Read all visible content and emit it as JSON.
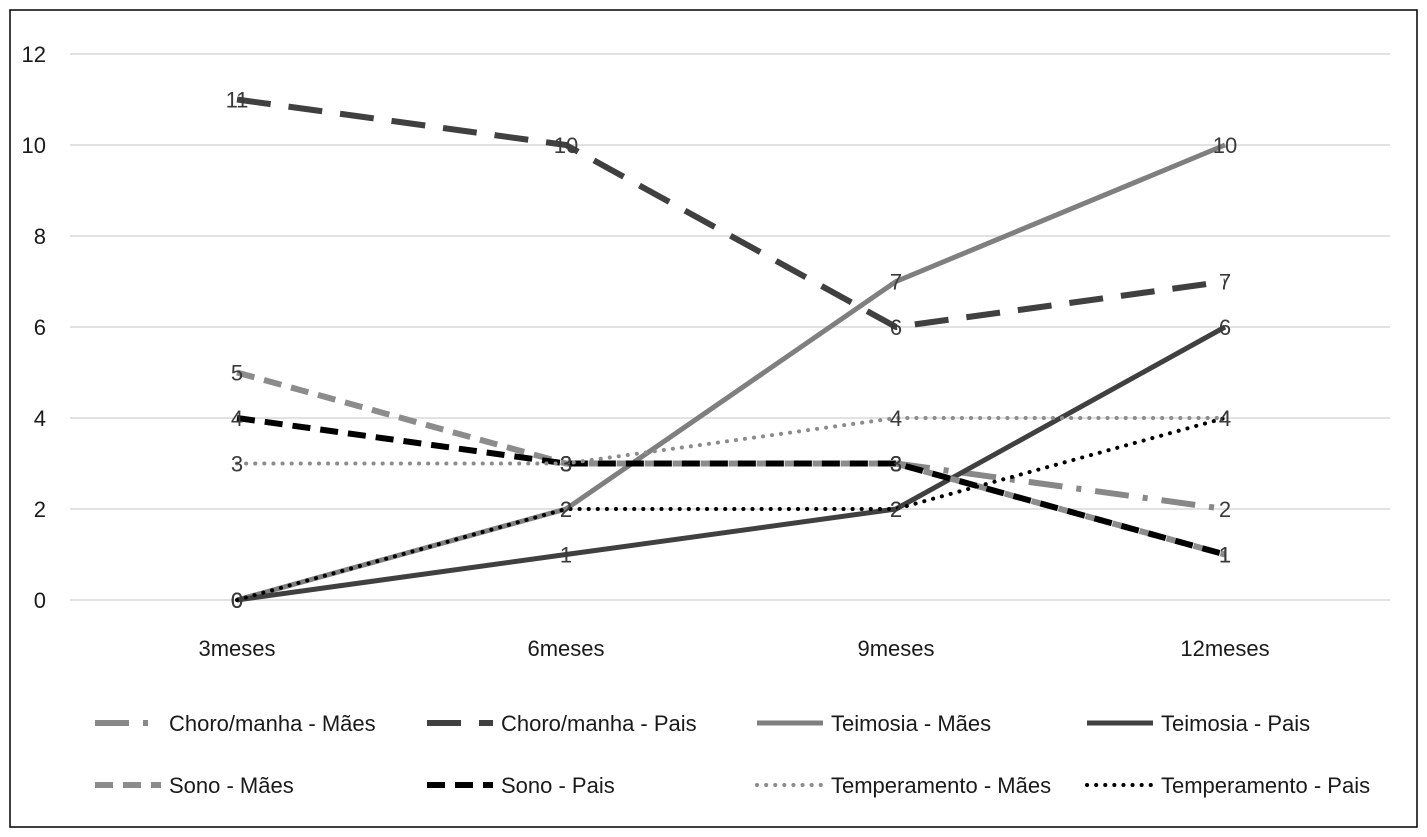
{
  "chart_data": {
    "type": "line",
    "categories": [
      "3meses",
      "6meses",
      "9meses",
      "12meses"
    ],
    "ylim": [
      0,
      12
    ],
    "yticks": [
      0,
      2,
      4,
      6,
      8,
      10,
      12
    ],
    "grid": true,
    "legend_position": "bottom",
    "title": "",
    "xlabel": "",
    "ylabel": "",
    "series": [
      {
        "name": "Choro/manha - Mães",
        "values": [
          null,
          null,
          3,
          2
        ],
        "color": "#888888",
        "dash": "long-dash-dot",
        "labels": [
          "",
          "",
          "3",
          "2"
        ]
      },
      {
        "name": "Choro/manha - Pais",
        "values": [
          11,
          10,
          6,
          7
        ],
        "color": "#404040",
        "dash": "long-dash",
        "labels": [
          "11",
          "10",
          "6",
          "7"
        ]
      },
      {
        "name": "Teimosia - Mães",
        "values": [
          0,
          2,
          7,
          10
        ],
        "color": "#7f7f7f",
        "dash": "solid",
        "labels": [
          "0",
          "2",
          "7",
          "10"
        ]
      },
      {
        "name": "Teimosia - Pais",
        "values": [
          0,
          1,
          2,
          6
        ],
        "color": "#404040",
        "dash": "solid",
        "labels": [
          "0",
          "1",
          "2",
          "6"
        ]
      },
      {
        "name": "Sono - Mães",
        "values": [
          5,
          3,
          3,
          1
        ],
        "color": "#8c8c8c",
        "dash": "dash",
        "labels": [
          "5",
          "3",
          "3",
          "1"
        ]
      },
      {
        "name": "Sono - Pais",
        "values": [
          4,
          3,
          3,
          1
        ],
        "color": "#000000",
        "dash": "dash",
        "labels": [
          "4",
          "3",
          "3",
          "1"
        ]
      },
      {
        "name": "Temperamento - Mães",
        "values": [
          3,
          3,
          4,
          4
        ],
        "color": "#8c8c8c",
        "dash": "dot",
        "labels": [
          "3",
          "3",
          "4",
          "4"
        ]
      },
      {
        "name": "Temperamento - Pais",
        "values": [
          0,
          2,
          2,
          4
        ],
        "color": "#000000",
        "dash": "dot",
        "labels": [
          "0",
          "2",
          "2",
          "4"
        ]
      }
    ]
  }
}
